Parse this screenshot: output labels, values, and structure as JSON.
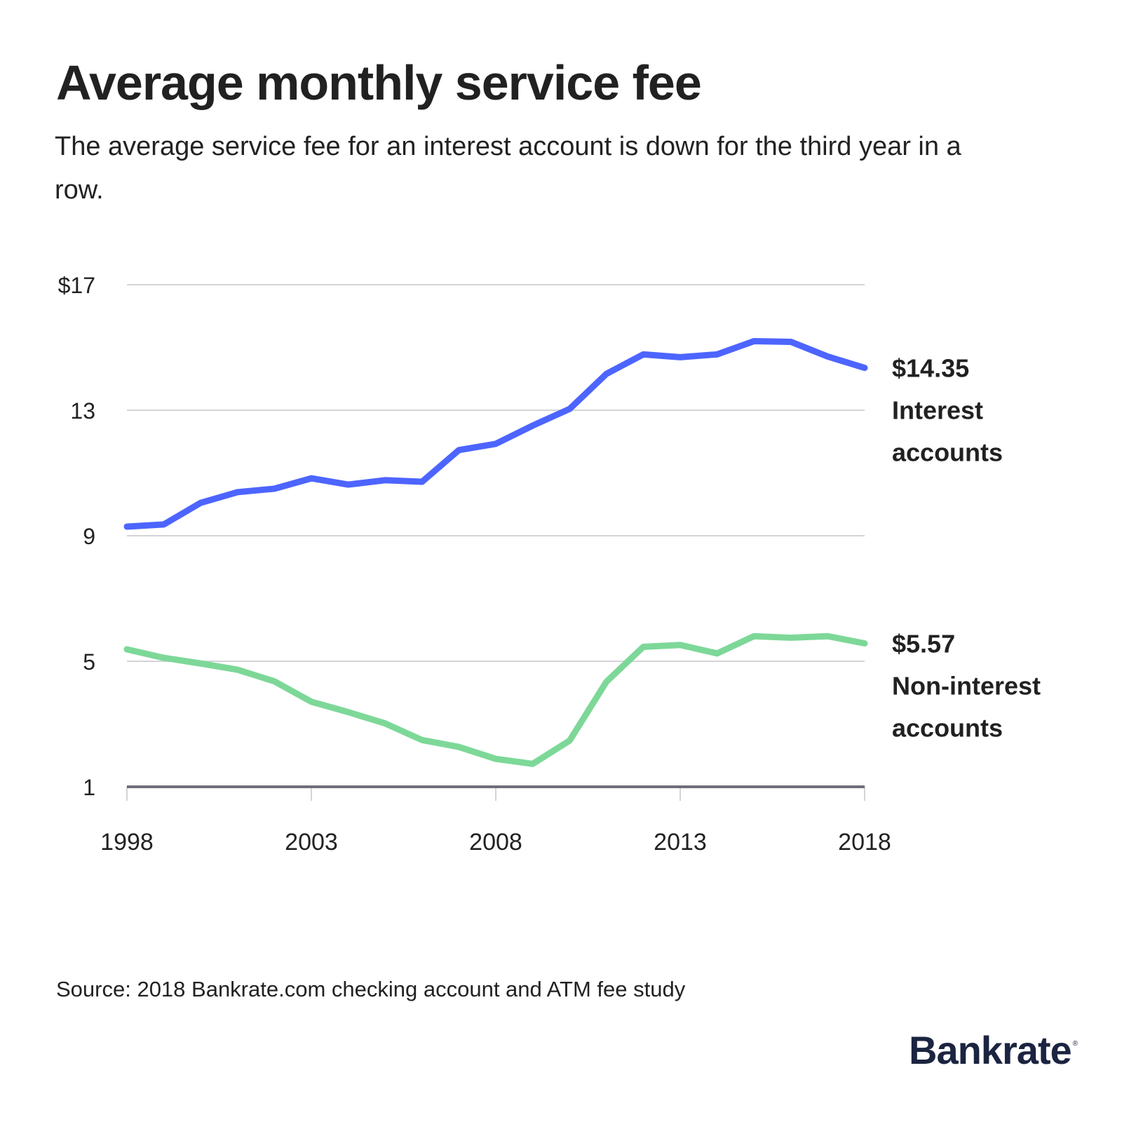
{
  "title": "Average monthly service fee",
  "subtitle": "The average service fee for an interest account is down for the third year in a row.",
  "source": "Source: 2018 Bankrate.com checking account and ATM fee study",
  "logo": {
    "text": "Bankrate",
    "mark": "®",
    "color": "#1b2440"
  },
  "chart_data": {
    "type": "line",
    "title": "Average monthly service fee",
    "xlabel": "",
    "ylabel": "",
    "x": [
      1998,
      1999,
      2000,
      2001,
      2002,
      2003,
      2004,
      2005,
      2006,
      2007,
      2008,
      2009,
      2010,
      2011,
      2012,
      2013,
      2014,
      2015,
      2016,
      2017,
      2018
    ],
    "xlim": [
      1998,
      2018
    ],
    "ylim": [
      1,
      17
    ],
    "x_ticks": [
      1998,
      2003,
      2008,
      2013,
      2018
    ],
    "x_tick_labels": [
      "1998",
      "2003",
      "2008",
      "2013",
      "2018"
    ],
    "y_ticks": [
      1,
      5,
      9,
      13,
      17
    ],
    "y_tick_labels": [
      "1",
      "5",
      "9",
      "13",
      "$17"
    ],
    "grid": true,
    "legend": "direct labels at right end of lines",
    "series": [
      {
        "name": "Interest accounts",
        "color": "#4d65ff",
        "end_value_label": "$14.35",
        "label_lines": [
          "Interest",
          "accounts"
        ],
        "values": [
          9.29,
          9.36,
          10.05,
          10.39,
          10.5,
          10.83,
          10.63,
          10.77,
          10.72,
          11.73,
          11.93,
          12.51,
          13.04,
          14.16,
          14.78,
          14.69,
          14.78,
          15.2,
          15.18,
          14.71,
          14.35
        ]
      },
      {
        "name": "Non-interest accounts",
        "color": "#7dd898",
        "end_value_label": "$5.57",
        "label_lines": [
          "Non-interest",
          "accounts"
        ],
        "values": [
          5.38,
          5.11,
          4.93,
          4.73,
          4.36,
          3.71,
          3.38,
          3.02,
          2.49,
          2.27,
          1.89,
          1.73,
          2.47,
          4.35,
          5.46,
          5.52,
          5.25,
          5.8,
          5.75,
          5.8,
          5.57
        ]
      }
    ]
  }
}
